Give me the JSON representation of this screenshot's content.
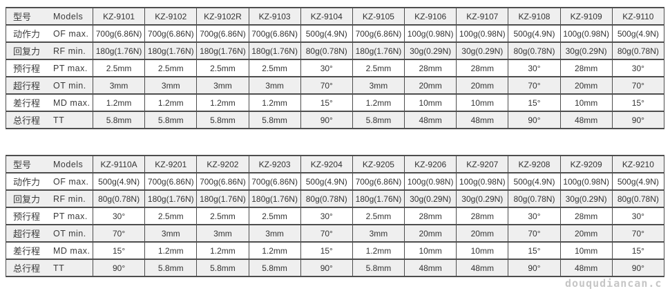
{
  "colors": {
    "row_shade": "#efefef",
    "border": "#4d4d4d",
    "text": "#333333",
    "watermark": "#c6c6c6"
  },
  "watermark": {
    "text": "douqudiancan.c"
  },
  "header_label": {
    "cn": "型号",
    "en": "Models"
  },
  "row_labels": [
    {
      "cn": "动作力",
      "en": "OF max."
    },
    {
      "cn": "回复力",
      "en": "RF min."
    },
    {
      "cn": "预行程",
      "en": "PT max."
    },
    {
      "cn": "超行程",
      "en": "OT min."
    },
    {
      "cn": "差行程",
      "en": "MD max."
    },
    {
      "cn": "总行程",
      "en": "TT"
    }
  ],
  "tables": [
    {
      "models": [
        "KZ-9101",
        "KZ-9102",
        "KZ-9102R",
        "KZ-9103",
        "KZ-9104",
        "KZ-9105",
        "KZ-9106",
        "KZ-9107",
        "KZ-9108",
        "KZ-9109",
        "KZ-9110"
      ],
      "rows": [
        [
          "700g(6.86N)",
          "700g(6.86N)",
          "700g(6.86N)",
          "700g(6.86N)",
          "500g(4.9N)",
          "700g(6.86N)",
          "100g(0.98N)",
          "100g(0.98N)",
          "500g(4.9N)",
          "100g(0.98N)",
          "500g(4.9N)"
        ],
        [
          "180g(1.76N)",
          "180g(1.76N)",
          "180g(1.76N)",
          "180g(1.76N)",
          "80g(0.78N)",
          "180g(1.76N)",
          "30g(0.29N)",
          "30g(0.29N)",
          "80g(0.78N)",
          "30g(0.29N)",
          "80g(0.78N)"
        ],
        [
          "2.5mm",
          "2.5mm",
          "2.5mm",
          "2.5mm",
          "30°",
          "2.5mm",
          "28mm",
          "28mm",
          "30°",
          "28mm",
          "30°"
        ],
        [
          "3mm",
          "3mm",
          "3mm",
          "3mm",
          "70°",
          "3mm",
          "20mm",
          "20mm",
          "70°",
          "20mm",
          "70°"
        ],
        [
          "1.2mm",
          "1.2mm",
          "1.2mm",
          "1.2mm",
          "15°",
          "1.2mm",
          "10mm",
          "10mm",
          "15°",
          "10mm",
          "15°"
        ],
        [
          "5.8mm",
          "5.8mm",
          "5.8mm",
          "5.8mm",
          "90°",
          "5.8mm",
          "48mm",
          "48mm",
          "90°",
          "48mm",
          "90°"
        ]
      ]
    },
    {
      "models": [
        "KZ-9110A",
        "KZ-9201",
        "KZ-9202",
        "KZ-9203",
        "KZ-9204",
        "KZ-9205",
        "KZ-9206",
        "KZ-9207",
        "KZ-9208",
        "KZ-9209",
        "KZ-9210"
      ],
      "rows": [
        [
          "500g(4.9N)",
          "700g(6.86N)",
          "700g(6.86N)",
          "700g(6.86N)",
          "500g(4.9N)",
          "700g(6.86N)",
          "100g(0.98N)",
          "100g(0.98N)",
          "500g(4.9N)",
          "100g(0.98N)",
          "500g(4.9N)"
        ],
        [
          "80g(0.78N)",
          "180g(1.76N)",
          "180g(1.76N)",
          "180g(1.76N)",
          "80g(0.78N)",
          "180g(1.76N)",
          "30g(0.29N)",
          "30g(0.29N)",
          "80g(0.78N)",
          "30g(0.29N)",
          "80g(0.78N)"
        ],
        [
          "30°",
          "2.5mm",
          "2.5mm",
          "2.5mm",
          "30°",
          "2.5mm",
          "28mm",
          "28mm",
          "30°",
          "28mm",
          "30°"
        ],
        [
          "70°",
          "3mm",
          "3mm",
          "3mm",
          "70°",
          "3mm",
          "20mm",
          "20mm",
          "70°",
          "20mm",
          "70°"
        ],
        [
          "15°",
          "1.2mm",
          "1.2mm",
          "1.2mm",
          "15°",
          "1.2mm",
          "10mm",
          "10mm",
          "15°",
          "10mm",
          "15°"
        ],
        [
          "90°",
          "5.8mm",
          "5.8mm",
          "5.8mm",
          "90°",
          "5.8mm",
          "48mm",
          "48mm",
          "90°",
          "48mm",
          "90°"
        ]
      ]
    }
  ]
}
